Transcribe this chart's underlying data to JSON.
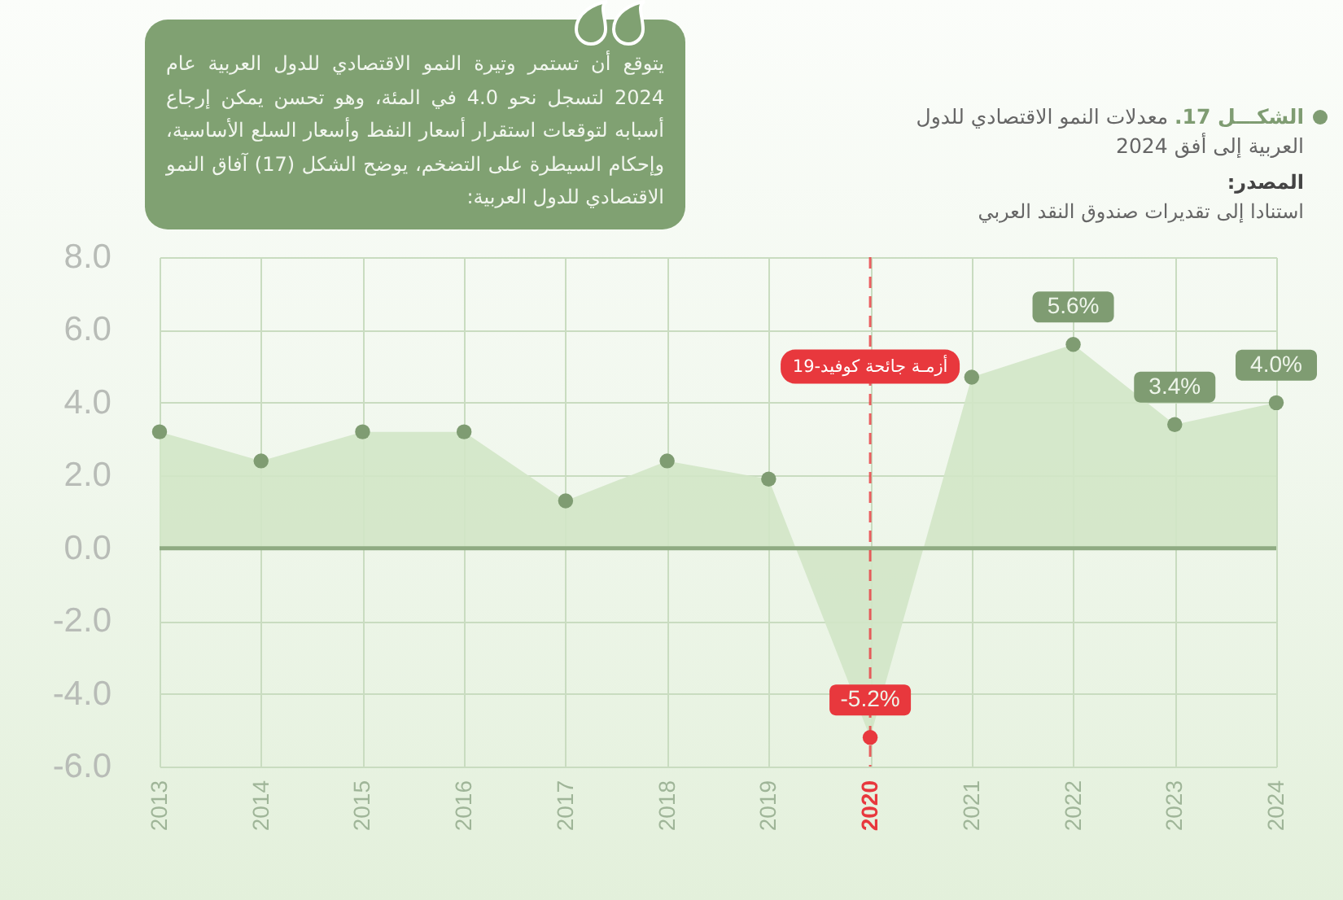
{
  "chart_data": {
    "type": "area",
    "title": "الشكـــل 17.  معدلات النمو الاقتصادي للدول العربية إلى أفق 2024",
    "categories": [
      "2013",
      "2014",
      "2015",
      "2016",
      "2017",
      "2018",
      "2019",
      "2020",
      "2021",
      "2022",
      "2023",
      "2024"
    ],
    "series": [
      {
        "color": "#d2e6c7",
        "values": [
          3.2,
          2.4,
          3.2,
          3.2,
          1.3,
          2.4,
          1.9,
          -5.2,
          4.7,
          5.6,
          3.4,
          4.0
        ]
      },
      {
        "type": "scatter",
        "marker": "circle",
        "colors": [
          "#7f9c72",
          "#7f9c72",
          "#7f9c72",
          "#7f9c72",
          "#7f9c72",
          "#7f9c72",
          "#7f9c72",
          "#e8383d",
          "#7f9c72",
          "#7f9c72",
          "#7f9c72",
          "#7f9c72"
        ],
        "values": [
          3.2,
          2.4,
          3.2,
          3.2,
          1.3,
          2.4,
          1.9,
          -5.2,
          4.7,
          5.6,
          3.4,
          4.0
        ],
        "value_labels": [
          null,
          null,
          null,
          null,
          null,
          null,
          null,
          "-5.2%",
          null,
          "5.6%",
          "3.4%",
          "4.0%"
        ]
      }
    ],
    "ylim": [
      -6,
      8
    ],
    "yticks": [
      {
        "value": -6,
        "label": "-6.0"
      },
      {
        "value": -4,
        "label": "-4.0"
      },
      {
        "value": -2,
        "label": "-2.0"
      },
      {
        "value": 0,
        "label": "0.0"
      },
      {
        "value": 2,
        "label": "2.0"
      },
      {
        "value": 4,
        "label": "4.0"
      },
      {
        "value": 6,
        "label": "6.0"
      },
      {
        "value": 8,
        "label": "8.0"
      }
    ],
    "grid": true,
    "ref_lines": [
      {
        "axis": "x",
        "value": "2020",
        "label": "أزمـة جائحة كوفيد-19",
        "color": "#e8383d",
        "line_style": "dashed"
      },
      {
        "axis": "y",
        "value": 0,
        "color": "#8fab82"
      }
    ],
    "annotations": [
      "يتوقع أن تستمر وتيرة النمو الاقتصادي للدول العربية عام 2024 لتسجل نحو 4.0 في المئة، وهو تحسن يمكن إرجاع أسبابه لتوقعات استقرار أسعار النفط وأسعار السلع الأساسية، وإحكام السيطرة على التضخم، يوضح الشكل (17) آفاق النمو الاقتصادي للدول العربية:",
      "المصدر:",
      "استنادا إلى تقديرات صندوق النقد العربي"
    ]
  }
}
